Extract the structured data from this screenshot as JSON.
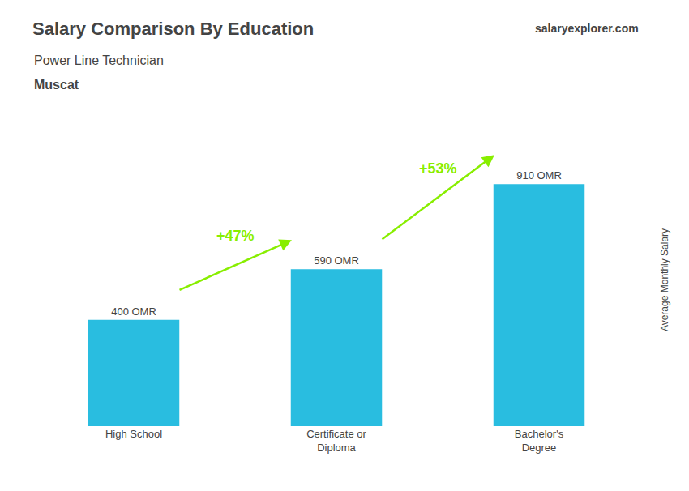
{
  "chart_data": {
    "type": "bar",
    "title": "Salary Comparison By Education",
    "subtitle": [
      "Power Line Technician",
      "Muscat"
    ],
    "ylabel": "Average Monthly Salary",
    "categories": [
      "High School",
      "Certificate or\nDiploma",
      "Bachelor's\nDegree"
    ],
    "values": [
      400,
      590,
      910
    ],
    "value_labels": [
      "400 OMR",
      "590 OMR",
      "910 OMR"
    ],
    "data_labels": true,
    "color": "#29bde0",
    "ylim": [
      0,
      1100
    ],
    "grid": false,
    "tick_labels": "x",
    "annotations": [
      {
        "text": "+47%",
        "from": "High School",
        "to": "Certificate or\nDiploma",
        "color": "#88ee00"
      },
      {
        "text": "+53%",
        "from": "Certificate or\nDiploma",
        "to": "Bachelor's\nDegree",
        "color": "#88ee00"
      },
      {
        "text": "salaryexplorer.com"
      }
    ]
  }
}
